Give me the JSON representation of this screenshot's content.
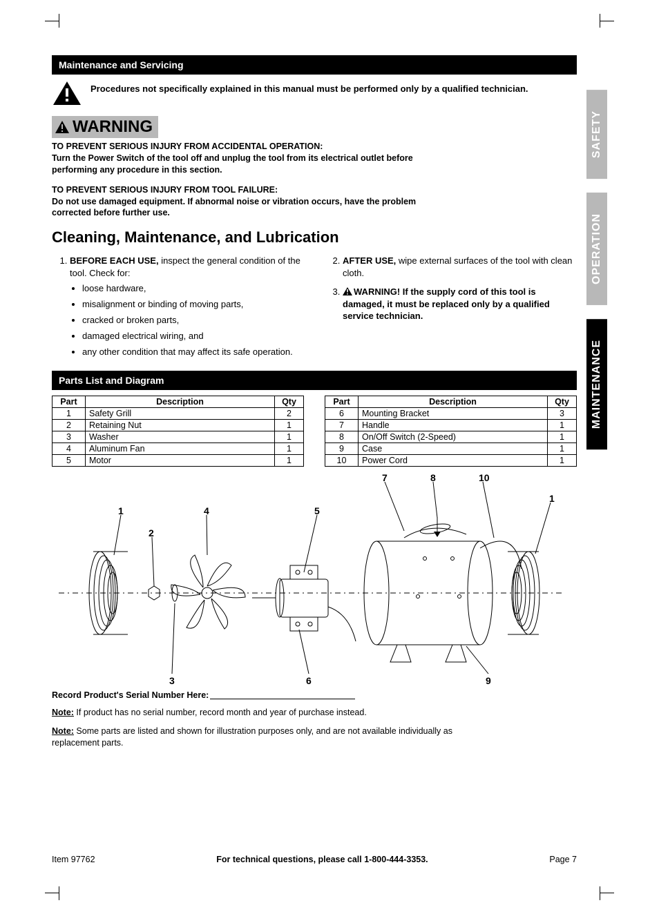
{
  "crop_marks": true,
  "side_tabs": [
    {
      "label": "SAFETY",
      "active": false
    },
    {
      "label": "OPERATION",
      "active": false
    },
    {
      "label": "MAINTENANCE",
      "active": true
    }
  ],
  "sections": {
    "maintenance_bar": "Maintenance and Servicing",
    "parts_bar": "Parts List and Diagram"
  },
  "top_warning_text": "Procedures not specifically explained in this manual must be performed only by a qualified technician.",
  "warning_badge_label": "WARNING",
  "warning_blocks": [
    "TO PREVENT SERIOUS INJURY FROM ACCIDENTAL OPERATION:\nTurn the Power Switch of the tool off and unplug the tool from its electrical outlet before performing any procedure in this section.",
    "TO PREVENT SERIOUS INJURY FROM TOOL FAILURE:\nDo not use damaged equipment.  If abnormal noise or vibration occurs, have the problem corrected before further use."
  ],
  "cleaning_title": "Cleaning, Maintenance, and Lubrication",
  "list_left": {
    "item1_lead": "BEFORE EACH USE,",
    "item1_rest": " inspect the general condition of the tool.  Check for:",
    "bullets": [
      "loose hardware,",
      "misalignment or binding of moving parts,",
      "cracked or broken parts,",
      "damaged electrical wiring, and",
      "any other condition that may affect its safe operation."
    ]
  },
  "list_right": {
    "item2_lead": "AFTER USE,",
    "item2_rest": " wipe external surfaces of the tool with clean cloth.",
    "item3_warn_lead": "WARNING!  If the supply cord of this tool is damaged, it must be replaced only by a qualified service technician."
  },
  "parts_table": {
    "columns": [
      "Part",
      "Description",
      "Qty"
    ],
    "left_rows": [
      [
        "1",
        "Safety Grill",
        "2"
      ],
      [
        "2",
        "Retaining Nut",
        "1"
      ],
      [
        "3",
        "Washer",
        "1"
      ],
      [
        "4",
        "Aluminum Fan",
        "1"
      ],
      [
        "5",
        "Motor",
        "1"
      ]
    ],
    "right_rows": [
      [
        "6",
        "Mounting Bracket",
        "3"
      ],
      [
        "7",
        "Handle",
        "1"
      ],
      [
        "8",
        "On/Off Switch (2-Speed)",
        "1"
      ],
      [
        "9",
        "Case",
        "1"
      ],
      [
        "10",
        "Power Cord",
        "1"
      ]
    ]
  },
  "diagram_labels": {
    "top": {
      "7": "7",
      "8": "8",
      "10": "10",
      "1r": "1"
    },
    "row": {
      "1": "1",
      "4": "4",
      "5": "5"
    },
    "sub": {
      "2": "2"
    },
    "bottom": {
      "3": "3",
      "6": "6",
      "9": "9"
    }
  },
  "serial": {
    "label": "Record Product's Serial Number Here:",
    "note1_lead": "Note:",
    "note1": " If product has no serial number, record month and year of purchase instead.",
    "note2_lead": "Note:",
    "note2": " Some parts are listed and shown for illustration purposes only, and are not available individually as replacement parts."
  },
  "footer": {
    "left": "Item 97762",
    "mid": "For technical questions, please call 1-800-444-3353.",
    "right": "Page 7"
  },
  "colors": {
    "black": "#000000",
    "grey_tab": "#b8b8b8",
    "white": "#ffffff"
  }
}
